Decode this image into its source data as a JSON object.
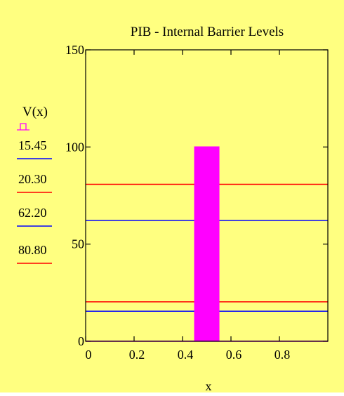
{
  "chart_data": {
    "type": "line",
    "title": "PIB - Internal Barrier Levels",
    "xlabel": "x",
    "ylabel": "V(x)",
    "xlim": [
      0,
      1
    ],
    "ylim": [
      0,
      150
    ],
    "x_ticks": [
      "0",
      "0.2",
      "0.4",
      "0.6",
      "0.8"
    ],
    "x_tick_values": [
      0,
      0.2,
      0.4,
      0.6,
      0.8
    ],
    "y_ticks": [
      "0",
      "50",
      "100",
      "150"
    ],
    "y_tick_values": [
      0,
      50,
      100,
      150
    ],
    "grid": false,
    "series": [
      {
        "name": "V(x)",
        "style": "filled-step",
        "color": "#ff00ff",
        "x": [
          0,
          0.45,
          0.45,
          0.55,
          0.55,
          1
        ],
        "y": [
          0,
          0,
          100,
          100,
          0,
          0
        ]
      }
    ],
    "levels": [
      {
        "label": "15.45",
        "value": 15.45,
        "color": "#0000ff"
      },
      {
        "label": "20.30",
        "value": 20.3,
        "color": "#ff0000"
      },
      {
        "label": "62.20",
        "value": 62.2,
        "color": "#0000ff"
      },
      {
        "label": "80.80",
        "value": 80.8,
        "color": "#ff0000"
      }
    ],
    "colors": {
      "background": "#ffff80",
      "plot_background": "#ffff80",
      "axis": "#000000",
      "text": "#000000"
    }
  }
}
